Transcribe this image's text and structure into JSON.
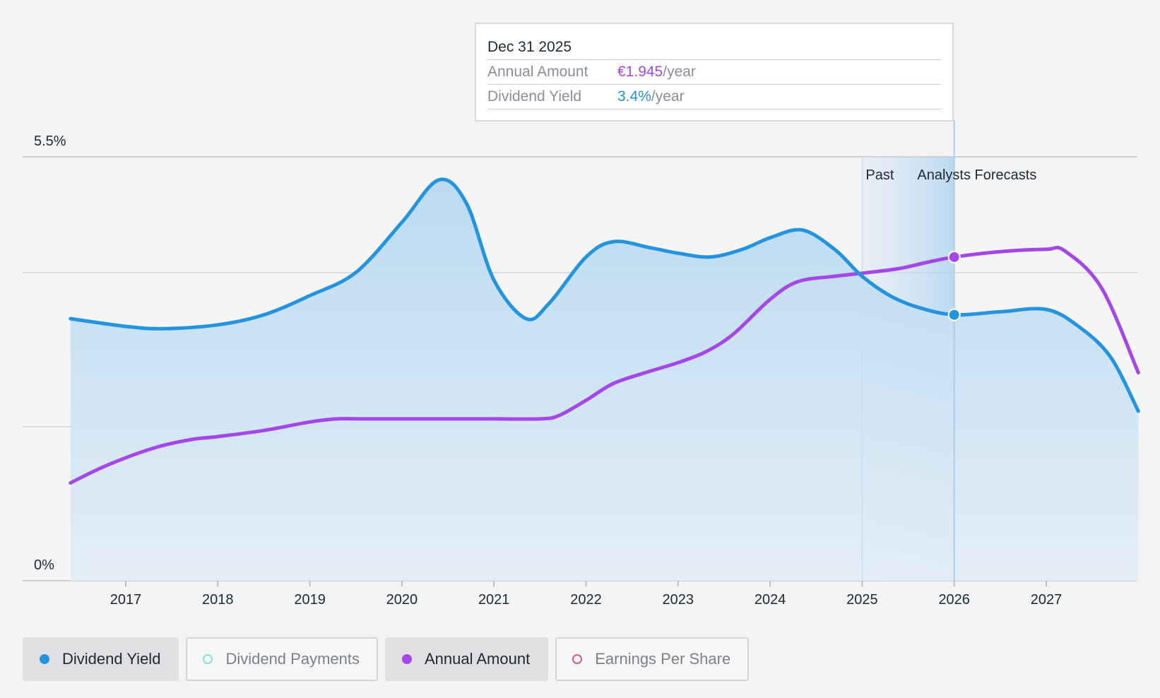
{
  "chart_data": {
    "type": "area",
    "x_start": 2016.4,
    "x_end": 2028.0,
    "xticks": [
      "2017",
      "2018",
      "2019",
      "2020",
      "2021",
      "2022",
      "2023",
      "2024",
      "2025",
      "2026",
      "2027"
    ],
    "yticks": [
      "5.5%",
      "0%"
    ],
    "y_range": [
      0,
      5.5
    ],
    "past_label": "Past",
    "forecast_label": "Analysts Forecasts",
    "forecast_region": [
      2025.0,
      2026.0
    ],
    "series": [
      {
        "name": "Dividend Yield",
        "color": "#2394df",
        "points": [
          [
            2016.4,
            3.4
          ],
          [
            2017.0,
            3.3
          ],
          [
            2017.4,
            3.27
          ],
          [
            2018.0,
            3.32
          ],
          [
            2018.5,
            3.45
          ],
          [
            2019.0,
            3.7
          ],
          [
            2019.5,
            4.0
          ],
          [
            2020.0,
            4.65
          ],
          [
            2020.4,
            5.2
          ],
          [
            2020.7,
            4.9
          ],
          [
            2021.0,
            3.9
          ],
          [
            2021.35,
            3.4
          ],
          [
            2021.6,
            3.6
          ],
          [
            2022.0,
            4.2
          ],
          [
            2022.3,
            4.4
          ],
          [
            2022.7,
            4.32
          ],
          [
            2023.0,
            4.25
          ],
          [
            2023.35,
            4.2
          ],
          [
            2023.7,
            4.3
          ],
          [
            2024.0,
            4.45
          ],
          [
            2024.35,
            4.55
          ],
          [
            2024.7,
            4.3
          ],
          [
            2025.0,
            3.95
          ],
          [
            2025.3,
            3.7
          ],
          [
            2025.6,
            3.55
          ],
          [
            2026.0,
            3.45
          ],
          [
            2026.5,
            3.49
          ],
          [
            2027.0,
            3.52
          ],
          [
            2027.35,
            3.3
          ],
          [
            2027.7,
            2.9
          ],
          [
            2028.0,
            2.2
          ]
        ]
      },
      {
        "name": "Annual Amount",
        "color": "#a546e8",
        "points": [
          [
            2016.4,
            1.27
          ],
          [
            2016.8,
            1.5
          ],
          [
            2017.3,
            1.72
          ],
          [
            2017.7,
            1.83
          ],
          [
            2018.0,
            1.87
          ],
          [
            2018.5,
            1.95
          ],
          [
            2019.0,
            2.06
          ],
          [
            2019.3,
            2.1
          ],
          [
            2019.6,
            2.1
          ],
          [
            2020.3,
            2.1
          ],
          [
            2021.0,
            2.1
          ],
          [
            2021.5,
            2.1
          ],
          [
            2021.7,
            2.14
          ],
          [
            2022.0,
            2.34
          ],
          [
            2022.3,
            2.56
          ],
          [
            2022.7,
            2.72
          ],
          [
            2023.0,
            2.83
          ],
          [
            2023.3,
            2.97
          ],
          [
            2023.6,
            3.2
          ],
          [
            2024.0,
            3.65
          ],
          [
            2024.3,
            3.88
          ],
          [
            2024.7,
            3.95
          ],
          [
            2025.0,
            3.99
          ],
          [
            2025.4,
            4.05
          ],
          [
            2025.7,
            4.13
          ],
          [
            2026.0,
            4.2
          ],
          [
            2026.5,
            4.27
          ],
          [
            2027.0,
            4.3
          ],
          [
            2027.2,
            4.28
          ],
          [
            2027.6,
            3.8
          ],
          [
            2028.0,
            2.7
          ]
        ]
      }
    ],
    "tooltip": {
      "date": "Dec 31 2025",
      "x": 2026.0,
      "rows": [
        {
          "label": "Annual Amount",
          "value": "€1.945",
          "unit": "/year",
          "color": "#a546e8"
        },
        {
          "label": "Dividend Yield",
          "value": "3.4%",
          "unit": "/year",
          "color": "#2394df"
        }
      ]
    },
    "legend": [
      {
        "label": "Dividend Yield",
        "color": "#2394df",
        "active": true,
        "filled": true
      },
      {
        "label": "Dividend Payments",
        "color": "#7fe3d6",
        "active": false,
        "filled": false
      },
      {
        "label": "Annual Amount",
        "color": "#a546e8",
        "active": true,
        "filled": true
      },
      {
        "label": "Earnings Per Share",
        "color": "#d15a95",
        "active": false,
        "filled": false
      }
    ]
  }
}
